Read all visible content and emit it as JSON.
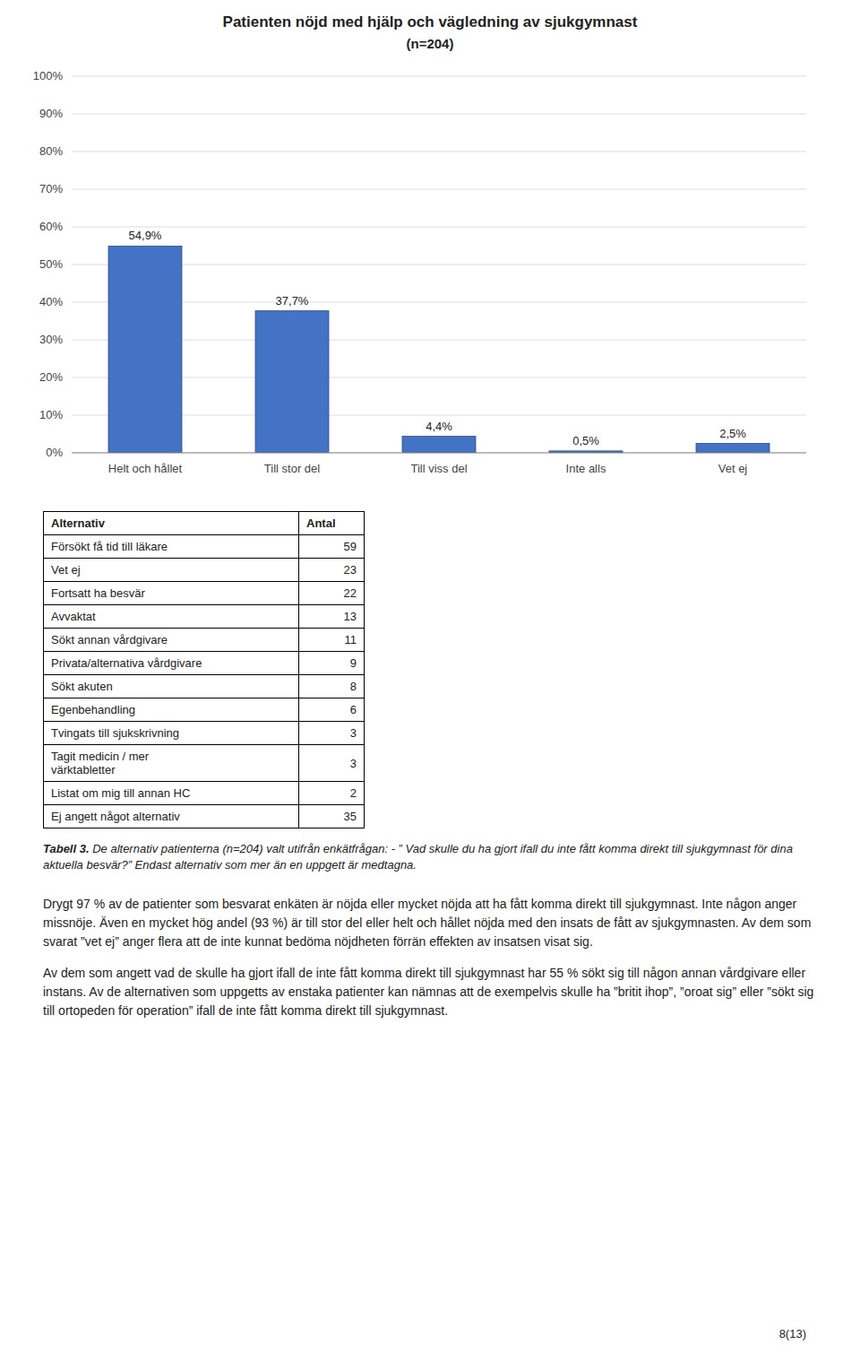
{
  "chart_data": {
    "type": "bar",
    "title": "Patienten nöjd med hjälp och vägledning av sjukgymnast",
    "subtitle": "(n=204)",
    "categories": [
      "Helt och hållet",
      "Till stor del",
      "Till viss del",
      "Inte alls",
      "Vet ej"
    ],
    "values": [
      54.9,
      37.7,
      4.4,
      0.5,
      2.5
    ],
    "value_labels": [
      "54,9%",
      "37,7%",
      "4,4%",
      "0,5%",
      "2,5%"
    ],
    "color": "#4472C4",
    "ylim": [
      0,
      100
    ],
    "yticks": [
      {
        "value": 0,
        "label": "0%"
      },
      {
        "value": 10,
        "label": "10%"
      },
      {
        "value": 20,
        "label": "20%"
      },
      {
        "value": 30,
        "label": "30%"
      },
      {
        "value": 40,
        "label": "40%"
      },
      {
        "value": 50,
        "label": "50%"
      },
      {
        "value": 60,
        "label": "60%"
      },
      {
        "value": 70,
        "label": "70%"
      },
      {
        "value": 80,
        "label": "80%"
      },
      {
        "value": 90,
        "label": "90%"
      },
      {
        "value": 100,
        "label": "100%"
      }
    ],
    "grid": true,
    "data_labels": true
  },
  "table": {
    "header": [
      "Alternativ",
      "Antal"
    ],
    "rows": [
      [
        "Försökt få tid till läkare",
        59
      ],
      [
        "Vet ej",
        23
      ],
      [
        "Fortsatt ha besvär",
        22
      ],
      [
        "Avvaktat",
        13
      ],
      [
        "Sökt annan vårdgivare",
        11
      ],
      [
        "Privata/alternativa vårdgivare",
        9
      ],
      [
        "Sökt akuten",
        8
      ],
      [
        "Egenbehandling",
        6
      ],
      [
        "Tvingats till sjukskrivning",
        3
      ],
      [
        "Tagit medicin / mer\nvärktabletter",
        3
      ],
      [
        "Listat om mig till annan HC",
        2
      ],
      [
        "Ej angett något alternativ",
        35
      ]
    ]
  },
  "caption": {
    "label": "Tabell 3.",
    "text": "De alternativ patienterna (n=204) valt utifrån enkätfrågan: - ” Vad skulle du ha gjort ifall du inte fått komma direkt till sjukgymnast för dina aktuella besvär?” Endast alternativ som mer än en uppgett är medtagna."
  },
  "body": [
    "Drygt 97 % av de patienter som besvarat enkäten är nöjda eller mycket nöjda att ha fått komma direkt till sjukgymnast. Inte någon anger missnöje. Även en mycket hög andel (93 %) är till stor del eller helt och hållet nöjda med den insats de fått av sjukgymnasten. Av dem som svarat ”vet ej” anger flera att de inte kunnat bedöma nöjdheten förrän effekten av insatsen visat sig.",
    "Av dem som angett vad de skulle ha gjort ifall de inte fått komma direkt till sjukgymnast har 55 % sökt sig till någon annan vårdgivare eller instans. Av de alternativen som uppgetts av enstaka patienter kan nämnas att de exempelvis skulle ha ”britit ihop”, ”oroat sig” eller ”sökt sig till ortopeden för operation” ifall de inte fått komma direkt till sjukgymnast."
  ],
  "page_number": "8(13)"
}
